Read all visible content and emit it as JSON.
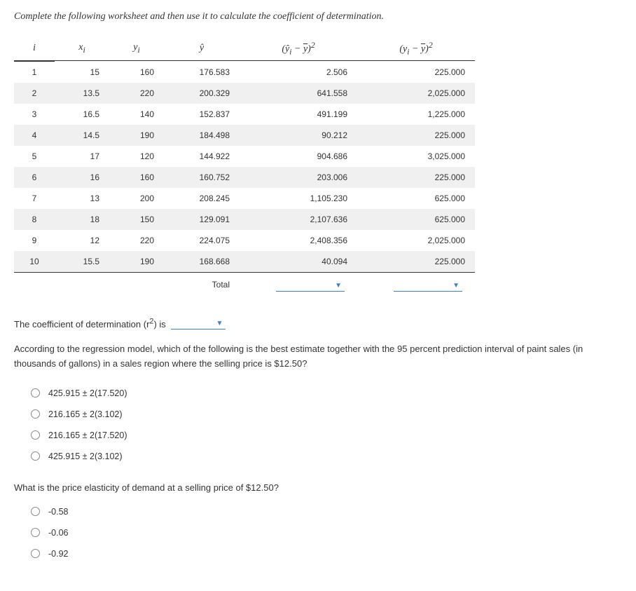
{
  "instruction": "Complete the following worksheet and then use it to calculate the coefficient of determination.",
  "headers": {
    "i": "i",
    "x": "x",
    "xi_sub": "i",
    "y": "y",
    "yi_sub": "i",
    "yhat": "ŷ",
    "col4_html": "(ŷᵢ − ȳ)²",
    "col5_html": "(yᵢ − ȳ)²"
  },
  "rows": [
    {
      "i": "1",
      "x": "15",
      "y": "160",
      "yhat": "176.583",
      "c1": "2.506",
      "c2": "225.000",
      "alt": false
    },
    {
      "i": "2",
      "x": "13.5",
      "y": "220",
      "yhat": "200.329",
      "c1": "641.558",
      "c2": "2,025.000",
      "alt": true
    },
    {
      "i": "3",
      "x": "16.5",
      "y": "140",
      "yhat": "152.837",
      "c1": "491.199",
      "c2": "1,225.000",
      "alt": false
    },
    {
      "i": "4",
      "x": "14.5",
      "y": "190",
      "yhat": "184.498",
      "c1": "90.212",
      "c2": "225.000",
      "alt": true
    },
    {
      "i": "5",
      "x": "17",
      "y": "120",
      "yhat": "144.922",
      "c1": "904.686",
      "c2": "3,025.000",
      "alt": false
    },
    {
      "i": "6",
      "x": "16",
      "y": "160",
      "yhat": "160.752",
      "c1": "203.006",
      "c2": "225.000",
      "alt": true
    },
    {
      "i": "7",
      "x": "13",
      "y": "200",
      "yhat": "208.245",
      "c1": "1,105.230",
      "c2": "625.000",
      "alt": false
    },
    {
      "i": "8",
      "x": "18",
      "y": "150",
      "yhat": "129.091",
      "c1": "2,107.636",
      "c2": "625.000",
      "alt": true
    },
    {
      "i": "9",
      "x": "12",
      "y": "220",
      "yhat": "224.075",
      "c1": "2,408.356",
      "c2": "2,025.000",
      "alt": false
    },
    {
      "i": "10",
      "x": "15.5",
      "y": "190",
      "yhat": "168.668",
      "c1": "40.094",
      "c2": "225.000",
      "alt": true
    }
  ],
  "total_label": "Total",
  "coef_text_pre": "The coefficient of determination (r",
  "coef_text_post": ") is",
  "question1": "According to the regression model, which of the following is the best estimate together with the 95 percent prediction interval of paint sales (in thousands of gallons) in a sales region where the selling price is $12.50?",
  "q1_options": [
    "425.915 ± 2(17.520)",
    "216.165 ± 2(3.102)",
    "216.165 ± 2(17.520)",
    "425.915 ± 2(3.102)"
  ],
  "question2": "What is the price elasticity of demand at a selling price of $12.50?",
  "q2_options": [
    "-0.58",
    "-0.06",
    "-0.92"
  ]
}
